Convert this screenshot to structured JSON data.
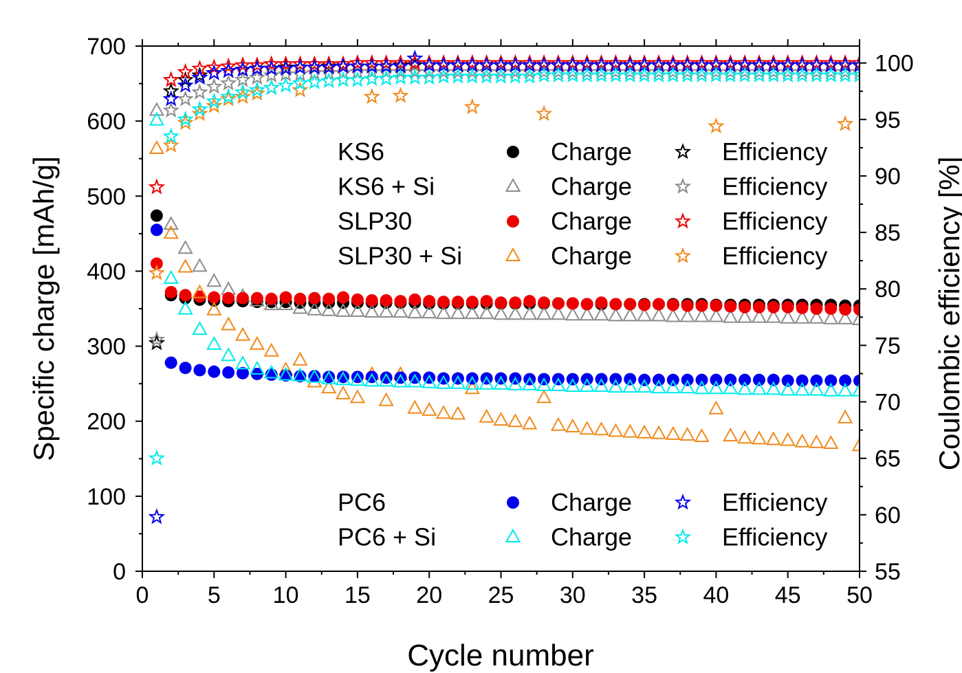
{
  "chart_data": {
    "type": "scatter",
    "xlabel": "Cycle number",
    "ylabel": "Specific charge [mAh/g]",
    "y2label": "Coulombic efficiency [%]",
    "xlim": [
      0,
      50
    ],
    "ylim": [
      0,
      700
    ],
    "y2lim": [
      55,
      101.5
    ],
    "x_ticks": [
      "0",
      "5",
      "10",
      "15",
      "20",
      "25",
      "30",
      "35",
      "40",
      "45",
      "50"
    ],
    "y_ticks": [
      "0",
      "100",
      "200",
      "300",
      "400",
      "500",
      "600",
      "700"
    ],
    "y2_ticks": [
      "55",
      "60",
      "65",
      "70",
      "75",
      "80",
      "85",
      "90",
      "95",
      "100"
    ],
    "grid": false,
    "legend_placement": "inside, upper-right (KS6, KS6 + Si, SLP30, SLP30 + Si) and lower-right (PC6, PC6 + Si)",
    "legend": {
      "upper": [
        {
          "material": "KS6",
          "charge_label": "Charge",
          "eff_label": "Efficiency",
          "color": "#000000",
          "charge_marker": "circle"
        },
        {
          "material": "KS6 + Si",
          "charge_label": "Charge",
          "eff_label": "Efficiency",
          "color": "#8c8c8c",
          "charge_marker": "triangle"
        },
        {
          "material": "SLP30",
          "charge_label": "Charge",
          "eff_label": "Efficiency",
          "color": "#ee0000",
          "charge_marker": "circle"
        },
        {
          "material": "SLP30 + Si",
          "charge_label": "Charge",
          "eff_label": "Efficiency",
          "color": "#f08a1c",
          "charge_marker": "triangle"
        }
      ],
      "lower": [
        {
          "material": "PC6",
          "charge_label": "Charge",
          "eff_label": "Efficiency",
          "color": "#0000ee",
          "charge_marker": "circle"
        },
        {
          "material": "PC6 + Si",
          "charge_label": "Charge",
          "eff_label": "Efficiency",
          "color": "#00eaea",
          "charge_marker": "triangle"
        }
      ]
    },
    "x": [
      1,
      2,
      3,
      4,
      5,
      6,
      7,
      8,
      9,
      10,
      11,
      12,
      13,
      14,
      15,
      16,
      17,
      18,
      19,
      20,
      21,
      22,
      23,
      24,
      25,
      26,
      27,
      28,
      29,
      30,
      31,
      32,
      33,
      34,
      35,
      36,
      37,
      38,
      39,
      40,
      41,
      42,
      43,
      44,
      45,
      46,
      47,
      48,
      49,
      50
    ],
    "series": [
      {
        "name": "KS6",
        "kind": "charge",
        "axis": "left",
        "marker": "circle",
        "color": "#000000",
        "values": [
          474,
          368,
          364,
          362,
          361,
          360,
          360,
          359,
          359,
          359,
          358,
          358,
          358,
          358,
          358,
          358,
          358,
          358,
          358,
          357,
          357,
          357,
          357,
          357,
          357,
          357,
          357,
          357,
          357,
          357,
          356,
          356,
          356,
          356,
          356,
          356,
          356,
          356,
          356,
          355,
          355,
          355,
          355,
          355,
          355,
          355,
          355,
          355,
          354,
          354
        ]
      },
      {
        "name": "KS6 + Si",
        "kind": "charge",
        "axis": "left",
        "marker": "triangle",
        "color": "#8c8c8c",
        "values": [
          614,
          462,
          430,
          406,
          386,
          375,
          366,
          360,
          355,
          355,
          350,
          348,
          347,
          346,
          346,
          345,
          345,
          345,
          344,
          344,
          343,
          343,
          343,
          343,
          342,
          342,
          342,
          342,
          342,
          341,
          341,
          341,
          340,
          340,
          340,
          340,
          339,
          339,
          339,
          339,
          338,
          338,
          338,
          338,
          337,
          337,
          337,
          336,
          336,
          335
        ]
      },
      {
        "name": "SLP30",
        "kind": "charge",
        "axis": "left",
        "marker": "circle",
        "color": "#ee0000",
        "values": [
          410,
          372,
          368,
          366,
          365,
          364,
          364,
          364,
          363,
          365,
          363,
          364,
          363,
          365,
          362,
          361,
          361,
          360,
          362,
          360,
          359,
          359,
          359,
          360,
          358,
          358,
          360,
          358,
          357,
          357,
          356,
          358,
          356,
          356,
          355,
          356,
          355,
          354,
          354,
          354,
          353,
          352,
          352,
          352,
          352,
          351,
          350,
          350,
          349,
          349
        ]
      },
      {
        "name": "SLP30 + Si",
        "kind": "charge",
        "axis": "left",
        "marker": "triangle",
        "color": "#f08a1c",
        "values": [
          563,
          450,
          405,
          371,
          348,
          328,
          314,
          302,
          293,
          268,
          281,
          252,
          244,
          236,
          231,
          262,
          227,
          262,
          217,
          214,
          210,
          209,
          243,
          205,
          201,
          199,
          196,
          231,
          194,
          192,
          189,
          188,
          186,
          185,
          184,
          183,
          182,
          181,
          179,
          216,
          180,
          177,
          176,
          175,
          174,
          172,
          171,
          170,
          204,
          167
        ]
      },
      {
        "name": "PC6",
        "kind": "charge",
        "axis": "left",
        "marker": "circle",
        "color": "#0000ee",
        "values": [
          455,
          278,
          271,
          268,
          266,
          265,
          264,
          263,
          262,
          261,
          260,
          260,
          259,
          259,
          259,
          259,
          258,
          258,
          258,
          258,
          257,
          257,
          257,
          257,
          257,
          257,
          256,
          256,
          256,
          256,
          256,
          256,
          256,
          256,
          255,
          255,
          255,
          255,
          255,
          255,
          255,
          255,
          255,
          255,
          254,
          254,
          254,
          254,
          254,
          254
        ]
      },
      {
        "name": "PC6 + Si",
        "kind": "charge",
        "axis": "left",
        "marker": "triangle",
        "color": "#00eaea",
        "values": [
          601,
          390,
          349,
          322,
          302,
          287,
          276,
          269,
          264,
          261,
          260,
          258,
          256,
          255,
          254,
          253,
          253,
          252,
          252,
          251,
          250,
          250,
          249,
          249,
          249,
          248,
          248,
          247,
          247,
          246,
          246,
          246,
          245,
          245,
          245,
          244,
          244,
          244,
          243,
          243,
          243,
          242,
          242,
          242,
          241,
          241,
          241,
          240,
          240,
          240
        ]
      },
      {
        "name": "KS6",
        "kind": "efficiency",
        "axis": "right",
        "marker": "star",
        "color": "#000000",
        "values": [
          75.2,
          97.5,
          98.5,
          98.9,
          99.1,
          99.3,
          99.4,
          99.5,
          99.5,
          99.6,
          99.6,
          99.6,
          99.7,
          99.7,
          99.7,
          99.7,
          99.7,
          99.8,
          99.8,
          99.8,
          99.8,
          99.8,
          99.8,
          99.8,
          99.8,
          99.8,
          99.8,
          99.8,
          99.8,
          99.8,
          99.8,
          99.8,
          99.8,
          99.8,
          99.8,
          99.8,
          99.8,
          99.8,
          99.8,
          99.8,
          99.8,
          99.8,
          99.8,
          99.8,
          99.8,
          99.8,
          99.8,
          99.8,
          99.8,
          99.8
        ]
      },
      {
        "name": "KS6 + Si",
        "kind": "efficiency",
        "axis": "right",
        "marker": "star",
        "color": "#8c8c8c",
        "values": [
          75.5,
          95.8,
          96.8,
          97.4,
          97.9,
          98.2,
          98.5,
          98.7,
          98.9,
          99.0,
          99.0,
          99.1,
          99.1,
          99.1,
          99.2,
          99.2,
          99.2,
          99.2,
          99.2,
          99.2,
          99.2,
          99.2,
          99.2,
          99.2,
          99.2,
          99.2,
          99.2,
          99.2,
          99.2,
          99.2,
          99.2,
          99.2,
          99.2,
          99.2,
          99.2,
          99.2,
          99.2,
          99.2,
          99.2,
          99.2,
          99.2,
          99.2,
          99.2,
          99.2,
          99.2,
          99.2,
          99.2,
          99.2,
          99.2,
          99.2
        ]
      },
      {
        "name": "SLP30",
        "kind": "efficiency",
        "axis": "right",
        "marker": "star",
        "color": "#ee0000",
        "values": [
          89.0,
          98.5,
          99.2,
          99.5,
          99.6,
          99.7,
          99.8,
          99.8,
          99.9,
          99.9,
          99.9,
          99.9,
          99.9,
          99.9,
          100.0,
          100.0,
          100.0,
          100.0,
          100.0,
          100.0,
          100.0,
          100.0,
          100.0,
          100.0,
          100.0,
          100.0,
          100.0,
          100.0,
          100.0,
          100.0,
          100.0,
          100.0,
          100.0,
          100.0,
          100.0,
          100.0,
          100.0,
          100.0,
          100.0,
          100.0,
          100.0,
          100.0,
          100.0,
          100.0,
          100.0,
          100.0,
          100.0,
          100.0,
          100.0,
          100.0
        ]
      },
      {
        "name": "SLP30 + Si",
        "kind": "efficiency",
        "axis": "right",
        "marker": "star",
        "color": "#f08a1c",
        "values": [
          81.4,
          92.7,
          94.7,
          95.5,
          96.2,
          96.8,
          97.0,
          97.3,
          97.8,
          null,
          97.6,
          null,
          null,
          null,
          null,
          97.0,
          null,
          97.1,
          null,
          null,
          null,
          null,
          96.1,
          null,
          null,
          null,
          null,
          95.5,
          null,
          null,
          null,
          null,
          null,
          null,
          null,
          null,
          null,
          null,
          null,
          94.4,
          null,
          null,
          null,
          null,
          null,
          null,
          null,
          null,
          94.6,
          null
        ]
      },
      {
        "name": "PC6",
        "kind": "efficiency",
        "axis": "right",
        "marker": "star",
        "color": "#0000ee",
        "values": [
          59.8,
          96.8,
          98.0,
          98.7,
          99.1,
          99.3,
          99.4,
          99.5,
          99.5,
          99.5,
          99.6,
          99.6,
          99.6,
          99.7,
          99.7,
          99.7,
          99.7,
          99.7,
          100.4,
          99.8,
          99.8,
          99.8,
          99.8,
          99.8,
          99.8,
          99.8,
          99.8,
          99.8,
          99.8,
          99.8,
          99.8,
          99.8,
          99.8,
          99.8,
          99.8,
          99.8,
          99.8,
          99.8,
          99.8,
          99.8,
          99.8,
          99.8,
          99.8,
          99.8,
          99.8,
          99.8,
          99.8,
          99.8,
          99.8,
          99.8
        ]
      },
      {
        "name": "PC6 + Si",
        "kind": "efficiency",
        "axis": "right",
        "marker": "star",
        "color": "#00eaea",
        "values": [
          65.0,
          93.5,
          95.0,
          95.9,
          96.6,
          97.0,
          97.4,
          97.6,
          97.8,
          98.0,
          98.2,
          98.3,
          98.4,
          98.5,
          98.5,
          98.6,
          98.6,
          98.7,
          98.7,
          98.7,
          98.8,
          98.8,
          98.8,
          98.8,
          98.8,
          98.8,
          98.8,
          98.9,
          98.9,
          98.9,
          98.9,
          98.9,
          98.9,
          98.9,
          98.9,
          98.9,
          98.9,
          98.9,
          98.9,
          98.9,
          98.9,
          98.9,
          98.9,
          98.9,
          98.9,
          98.9,
          98.9,
          98.9,
          98.9,
          98.9
        ]
      }
    ]
  }
}
